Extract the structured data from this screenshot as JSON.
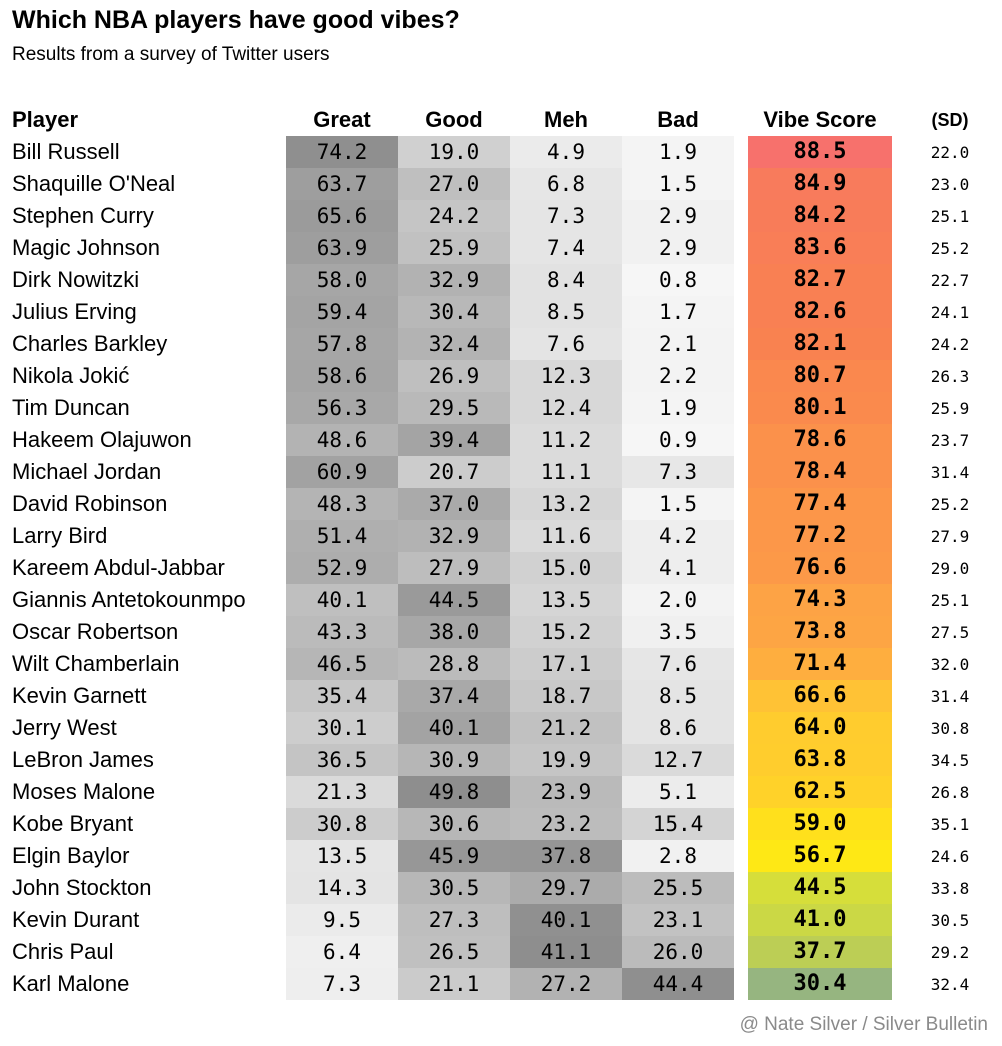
{
  "title": "Which NBA players have good vibes?",
  "subtitle": "Results from a survey of Twitter users",
  "credit": "@ Nate Silver / Silver Bulletin",
  "headers": {
    "player": "Player",
    "great": "Great",
    "good": "Good",
    "meh": "Meh",
    "bad": "Bad",
    "vibe": "Vibe Score",
    "sd": "(SD)"
  },
  "chart_data": {
    "type": "table",
    "title": "Which NBA players have good vibes?",
    "subtitle": "Results from a survey of Twitter users",
    "columns": [
      "Player",
      "Great",
      "Good",
      "Meh",
      "Bad",
      "Vibe Score",
      "(SD)"
    ],
    "rows": [
      {
        "player": "Bill Russell",
        "great": "74.2",
        "good": "19.0",
        "meh": "4.9",
        "bad": "1.9",
        "vibe": "88.5",
        "sd": "22.0"
      },
      {
        "player": "Shaquille O'Neal",
        "great": "63.7",
        "good": "27.0",
        "meh": "6.8",
        "bad": "1.5",
        "vibe": "84.9",
        "sd": "23.0"
      },
      {
        "player": "Stephen Curry",
        "great": "65.6",
        "good": "24.2",
        "meh": "7.3",
        "bad": "2.9",
        "vibe": "84.2",
        "sd": "25.1"
      },
      {
        "player": "Magic Johnson",
        "great": "63.9",
        "good": "25.9",
        "meh": "7.4",
        "bad": "2.9",
        "vibe": "83.6",
        "sd": "25.2"
      },
      {
        "player": "Dirk Nowitzki",
        "great": "58.0",
        "good": "32.9",
        "meh": "8.4",
        "bad": "0.8",
        "vibe": "82.7",
        "sd": "22.7"
      },
      {
        "player": "Julius Erving",
        "great": "59.4",
        "good": "30.4",
        "meh": "8.5",
        "bad": "1.7",
        "vibe": "82.6",
        "sd": "24.1"
      },
      {
        "player": "Charles Barkley",
        "great": "57.8",
        "good": "32.4",
        "meh": "7.6",
        "bad": "2.1",
        "vibe": "82.1",
        "sd": "24.2"
      },
      {
        "player": "Nikola Jokić",
        "great": "58.6",
        "good": "26.9",
        "meh": "12.3",
        "bad": "2.2",
        "vibe": "80.7",
        "sd": "26.3"
      },
      {
        "player": "Tim Duncan",
        "great": "56.3",
        "good": "29.5",
        "meh": "12.4",
        "bad": "1.9",
        "vibe": "80.1",
        "sd": "25.9"
      },
      {
        "player": "Hakeem Olajuwon",
        "great": "48.6",
        "good": "39.4",
        "meh": "11.2",
        "bad": "0.9",
        "vibe": "78.6",
        "sd": "23.7"
      },
      {
        "player": "Michael Jordan",
        "great": "60.9",
        "good": "20.7",
        "meh": "11.1",
        "bad": "7.3",
        "vibe": "78.4",
        "sd": "31.4"
      },
      {
        "player": "David Robinson",
        "great": "48.3",
        "good": "37.0",
        "meh": "13.2",
        "bad": "1.5",
        "vibe": "77.4",
        "sd": "25.2"
      },
      {
        "player": "Larry Bird",
        "great": "51.4",
        "good": "32.9",
        "meh": "11.6",
        "bad": "4.2",
        "vibe": "77.2",
        "sd": "27.9"
      },
      {
        "player": "Kareem Abdul-Jabbar",
        "great": "52.9",
        "good": "27.9",
        "meh": "15.0",
        "bad": "4.1",
        "vibe": "76.6",
        "sd": "29.0"
      },
      {
        "player": "Giannis Antetokounmpo",
        "great": "40.1",
        "good": "44.5",
        "meh": "13.5",
        "bad": "2.0",
        "vibe": "74.3",
        "sd": "25.1"
      },
      {
        "player": "Oscar Robertson",
        "great": "43.3",
        "good": "38.0",
        "meh": "15.2",
        "bad": "3.5",
        "vibe": "73.8",
        "sd": "27.5"
      },
      {
        "player": "Wilt Chamberlain",
        "great": "46.5",
        "good": "28.8",
        "meh": "17.1",
        "bad": "7.6",
        "vibe": "71.4",
        "sd": "32.0"
      },
      {
        "player": "Kevin Garnett",
        "great": "35.4",
        "good": "37.4",
        "meh": "18.7",
        "bad": "8.5",
        "vibe": "66.6",
        "sd": "31.4"
      },
      {
        "player": "Jerry West",
        "great": "30.1",
        "good": "40.1",
        "meh": "21.2",
        "bad": "8.6",
        "vibe": "64.0",
        "sd": "30.8"
      },
      {
        "player": "LeBron James",
        "great": "36.5",
        "good": "30.9",
        "meh": "19.9",
        "bad": "12.7",
        "vibe": "63.8",
        "sd": "34.5"
      },
      {
        "player": "Moses Malone",
        "great": "21.3",
        "good": "49.8",
        "meh": "23.9",
        "bad": "5.1",
        "vibe": "62.5",
        "sd": "26.8"
      },
      {
        "player": "Kobe Bryant",
        "great": "30.8",
        "good": "30.6",
        "meh": "23.2",
        "bad": "15.4",
        "vibe": "59.0",
        "sd": "35.1"
      },
      {
        "player": "Elgin Baylor",
        "great": "13.5",
        "good": "45.9",
        "meh": "37.8",
        "bad": "2.8",
        "vibe": "56.7",
        "sd": "24.6"
      },
      {
        "player": "John Stockton",
        "great": "14.3",
        "good": "30.5",
        "meh": "29.7",
        "bad": "25.5",
        "vibe": "44.5",
        "sd": "33.8"
      },
      {
        "player": "Kevin Durant",
        "great": "9.5",
        "good": "27.3",
        "meh": "40.1",
        "bad": "23.1",
        "vibe": "41.0",
        "sd": "30.5"
      },
      {
        "player": "Chris Paul",
        "great": "6.4",
        "good": "26.5",
        "meh": "41.1",
        "bad": "26.0",
        "vibe": "37.7",
        "sd": "29.2"
      },
      {
        "player": "Karl Malone",
        "great": "7.3",
        "good": "21.1",
        "meh": "27.2",
        "bad": "44.4",
        "vibe": "30.4",
        "sd": "32.4"
      }
    ]
  }
}
